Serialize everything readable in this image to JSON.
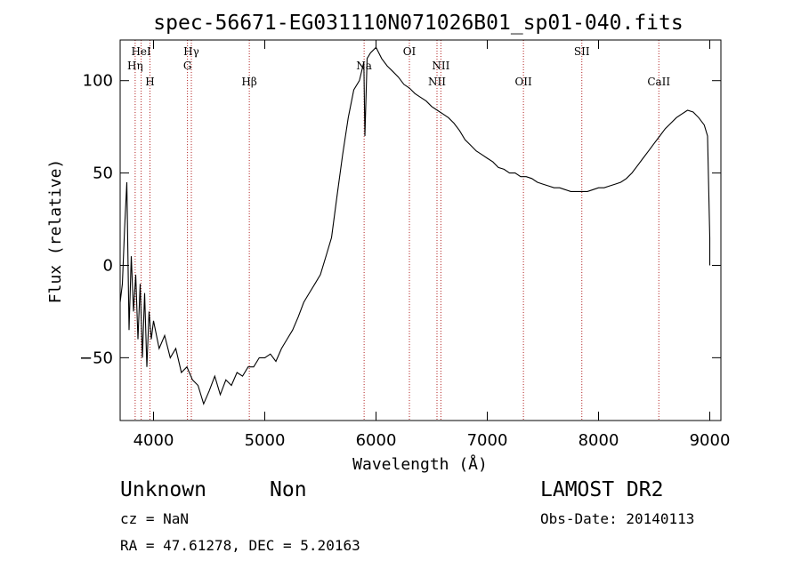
{
  "chart_data": {
    "type": "line",
    "title": "spec-56671-EG031110N071026B01_sp01-040.fits",
    "xlabel": "Wavelength (Å)",
    "ylabel": "Flux (relative)",
    "xlim": [
      3700,
      9100
    ],
    "ylim": [
      -84,
      122
    ],
    "x_ticks": [
      4000,
      5000,
      6000,
      7000,
      8000,
      9000
    ],
    "y_ticks": [
      -50,
      0,
      50,
      100
    ],
    "grid": false,
    "series": [
      {
        "x": [
          3700,
          3720,
          3740,
          3760,
          3780,
          3800,
          3820,
          3840,
          3860,
          3880,
          3900,
          3920,
          3940,
          3960,
          3980,
          4000,
          4050,
          4100,
          4150,
          4200,
          4250,
          4300,
          4350,
          4400,
          4450,
          4500,
          4550,
          4600,
          4650,
          4700,
          4750,
          4800,
          4850,
          4900,
          4950,
          5000,
          5050,
          5100,
          5150,
          5200,
          5250,
          5300,
          5350,
          5400,
          5450,
          5500,
          5550,
          5600,
          5650,
          5700,
          5750,
          5800,
          5850,
          5890,
          5900,
          5920,
          5950,
          6000,
          6050,
          6100,
          6150,
          6200,
          6250,
          6300,
          6350,
          6400,
          6450,
          6500,
          6550,
          6600,
          6650,
          6700,
          6750,
          6800,
          6850,
          6900,
          6950,
          7000,
          7050,
          7100,
          7150,
          7200,
          7250,
          7300,
          7350,
          7400,
          7450,
          7500,
          7550,
          7600,
          7650,
          7700,
          7750,
          7800,
          7850,
          7900,
          7950,
          8000,
          8050,
          8100,
          8150,
          8200,
          8250,
          8300,
          8350,
          8400,
          8450,
          8500,
          8550,
          8600,
          8650,
          8700,
          8750,
          8800,
          8850,
          8900,
          8950,
          8980,
          9000,
          9000
        ],
        "y": [
          -20,
          -10,
          20,
          45,
          -35,
          5,
          -25,
          -5,
          -40,
          -10,
          -50,
          -15,
          -55,
          -25,
          -40,
          -30,
          -45,
          -38,
          -50,
          -45,
          -58,
          -55,
          -62,
          -65,
          -75,
          -68,
          -60,
          -70,
          -62,
          -65,
          -58,
          -60,
          -55,
          -55,
          -50,
          -50,
          -48,
          -52,
          -45,
          -40,
          -35,
          -28,
          -20,
          -15,
          -10,
          -5,
          5,
          15,
          38,
          60,
          80,
          95,
          100,
          110,
          70,
          112,
          115,
          118,
          112,
          108,
          105,
          102,
          98,
          96,
          93,
          91,
          89,
          86,
          84,
          82,
          80,
          77,
          73,
          68,
          65,
          62,
          60,
          58,
          56,
          53,
          52,
          50,
          50,
          48,
          48,
          47,
          45,
          44,
          43,
          42,
          42,
          41,
          40,
          40,
          40,
          40,
          41,
          42,
          42,
          43,
          44,
          45,
          47,
          50,
          54,
          58,
          62,
          66,
          70,
          74,
          77,
          80,
          82,
          84,
          83,
          80,
          76,
          70,
          15,
          0
        ]
      }
    ],
    "lines": [
      {
        "name": "HeI",
        "x": 3889,
        "row": 1
      },
      {
        "name": "Hη",
        "x": 3835,
        "row": 2
      },
      {
        "name": "H",
        "x": 3968,
        "row": 3
      },
      {
        "name": "Hγ",
        "x": 4340,
        "row": 1
      },
      {
        "name": "G",
        "x": 4305,
        "row": 2
      },
      {
        "name": "Hβ",
        "x": 4861,
        "row": 3
      },
      {
        "name": "Na",
        "x": 5893,
        "row": 2
      },
      {
        "name": "OI",
        "x": 6300,
        "row": 1
      },
      {
        "name": "NII",
        "x": 6583,
        "row": 2
      },
      {
        "name": "NII",
        "x": 6548,
        "row": 3
      },
      {
        "name": "OII",
        "x": 7325,
        "row": 3
      },
      {
        "name": "SII",
        "x": 7850,
        "row": 1
      },
      {
        "name": "CaII",
        "x": 8542,
        "row": 3
      }
    ]
  },
  "footer": {
    "object_class": "Unknown",
    "object_subclass": "Non",
    "survey": "LAMOST DR2",
    "redshift": "cz = NaN",
    "obs_date": "Obs-Date: 20140113",
    "coords": "RA =  47.61278, DEC =   5.20163"
  }
}
